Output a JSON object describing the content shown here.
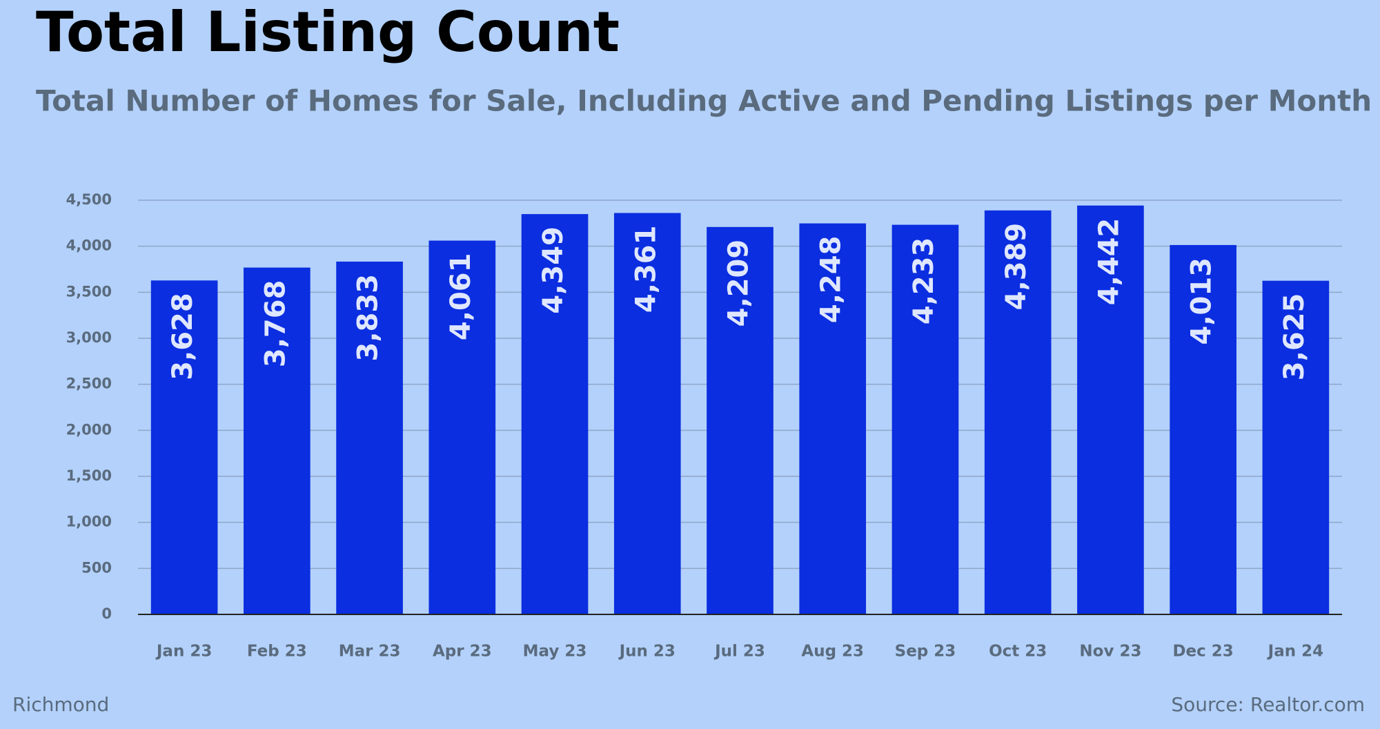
{
  "chart_data": {
    "type": "bar",
    "title": "Total Listing Count",
    "subtitle": "Total Number of Homes for Sale, Including Active and Pending Listings per Month",
    "categories": [
      "Jan 23",
      "Feb 23",
      "Mar 23",
      "Apr 23",
      "May 23",
      "Jun 23",
      "Jul 23",
      "Aug 23",
      "Sep 23",
      "Oct 23",
      "Nov 23",
      "Dec 23",
      "Jan 24"
    ],
    "values": [
      3628,
      3768,
      3833,
      4061,
      4349,
      4361,
      4209,
      4248,
      4233,
      4389,
      4442,
      4013,
      3625
    ],
    "value_labels": [
      "3,628",
      "3,768",
      "3,833",
      "4,061",
      "4,349",
      "4,361",
      "4,209",
      "4,248",
      "4,233",
      "4,389",
      "4,442",
      "4,013",
      "3,625"
    ],
    "color": "#0b2ee0",
    "ylim": [
      0,
      4500
    ],
    "yticks": [
      0,
      500,
      {
        "value": 1000,
        "label": "1,000"
      },
      {
        "value": 1500,
        "label": "1,500"
      },
      {
        "value": 2000,
        "label": "2,000"
      },
      {
        "value": 2500,
        "label": "2,500"
      },
      {
        "value": 3000,
        "label": "3,000"
      },
      {
        "value": 3500,
        "label": "3,500"
      },
      {
        "value": 4000,
        "label": "4,000"
      },
      {
        "value": 4500,
        "label": "4,500"
      }
    ],
    "grid": true,
    "footnote_left": "Richmond",
    "footnote_right": "Source: Realtor.com"
  }
}
